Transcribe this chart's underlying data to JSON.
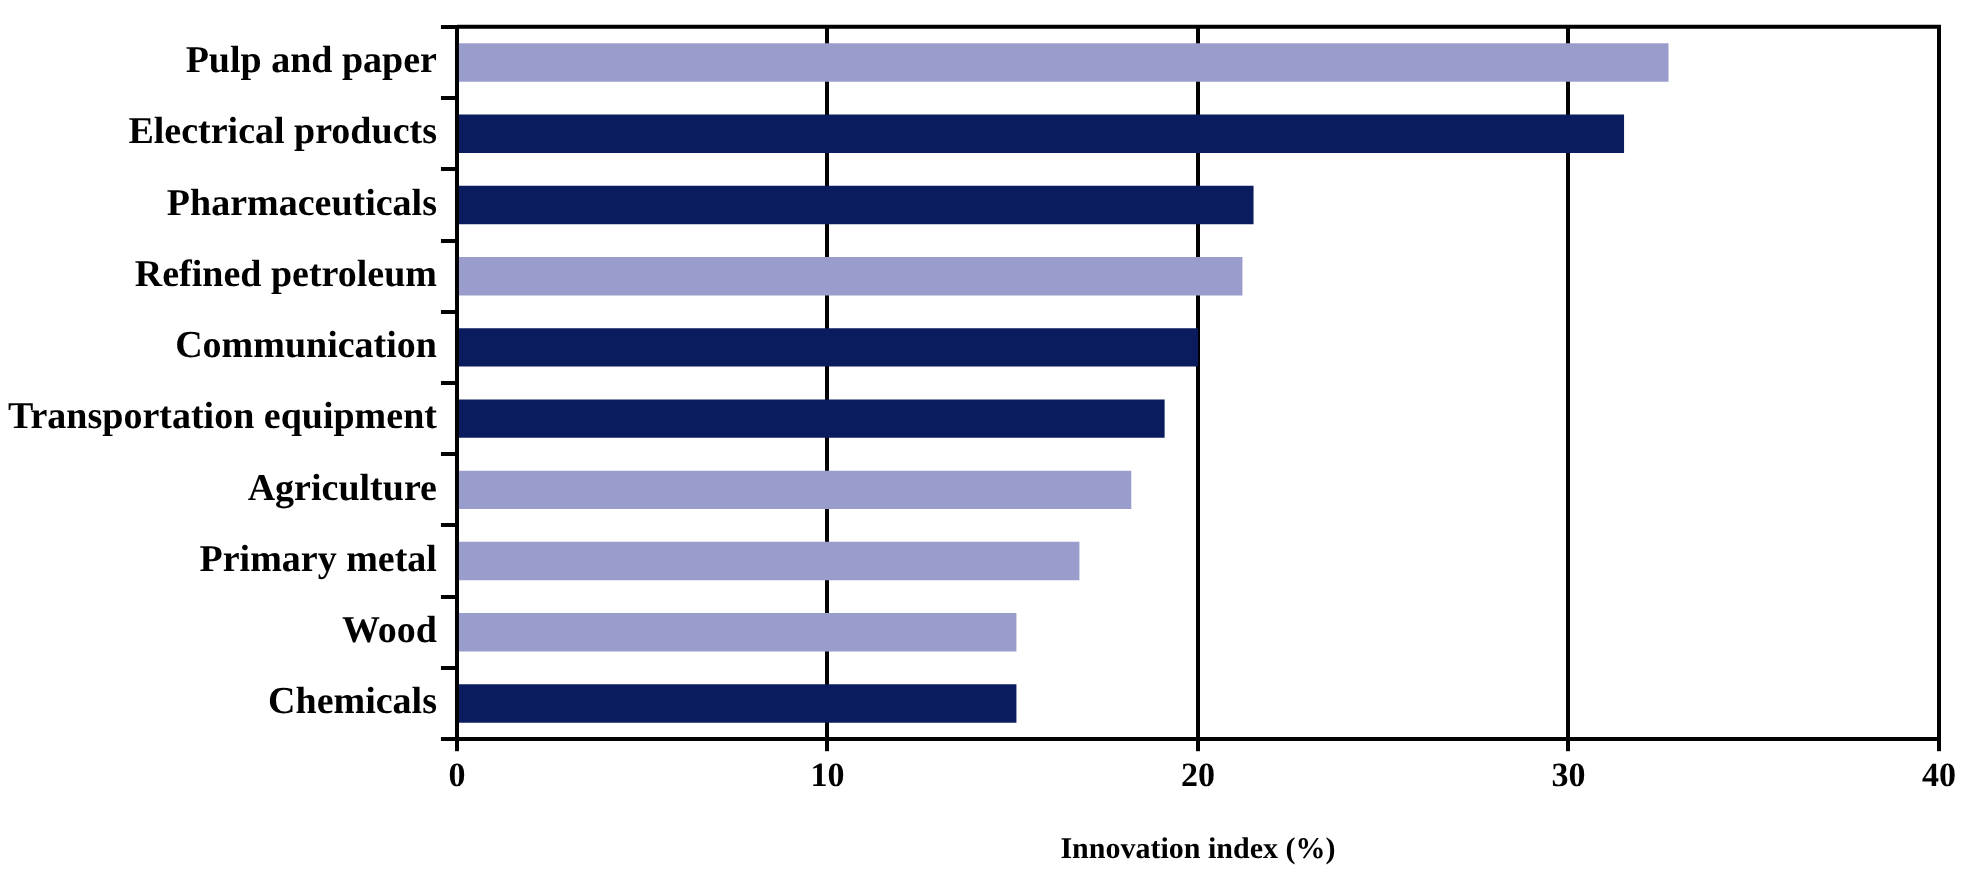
{
  "chart_data": {
    "type": "bar",
    "orientation": "horizontal",
    "xlabel": "Innovation index (%)",
    "categories": [
      "Pulp and paper",
      "Electrical products",
      "Pharmaceuticals",
      "Refined petroleum",
      "Communication",
      "Transportation equipment",
      "Agriculture",
      "Primary metal",
      "Wood",
      "Chemicals"
    ],
    "values": [
      32.7,
      31.5,
      21.5,
      21.2,
      20.0,
      19.1,
      18.2,
      16.8,
      15.1,
      15.1
    ],
    "colors": [
      "#9a9ccc",
      "#0b1c5e",
      "#0b1c5e",
      "#9a9ccc",
      "#0b1c5e",
      "#0b1c5e",
      "#9a9ccc",
      "#9a9ccc",
      "#9a9ccc",
      "#0b1c5e"
    ],
    "xlim": [
      0,
      40
    ],
    "xticks": [
      0,
      10,
      20,
      30,
      40
    ],
    "grid": "x",
    "legend": false
  }
}
